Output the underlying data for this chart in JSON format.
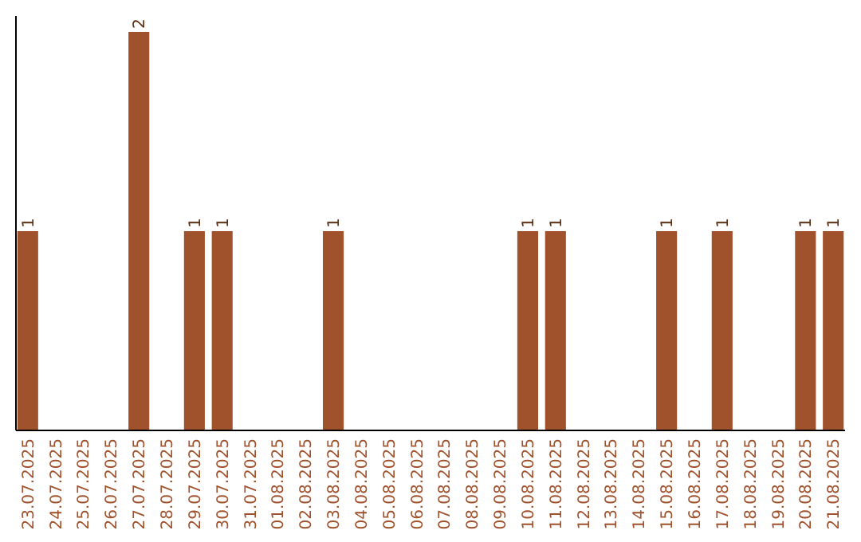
{
  "chart_data": {
    "type": "bar",
    "categories": [
      "23.07.2025",
      "24.07.2025",
      "25.07.2025",
      "26.07.2025",
      "27.07.2025",
      "28.07.2025",
      "29.07.2025",
      "30.07.2025",
      "31.07.2025",
      "01.08.2025",
      "02.08.2025",
      "03.08.2025",
      "04.08.2025",
      "05.08.2025",
      "06.08.2025",
      "07.08.2025",
      "08.08.2025",
      "09.08.2025",
      "10.08.2025",
      "11.08.2025",
      "12.08.2025",
      "13.08.2025",
      "14.08.2025",
      "15.08.2025",
      "16.08.2025",
      "17.08.2025",
      "18.08.2025",
      "19.08.2025",
      "20.08.2025",
      "21.08.2025"
    ],
    "values": [
      1,
      0,
      0,
      0,
      2,
      0,
      1,
      1,
      0,
      0,
      0,
      1,
      0,
      0,
      0,
      0,
      0,
      0,
      1,
      1,
      0,
      0,
      0,
      1,
      0,
      1,
      0,
      0,
      1,
      1
    ],
    "value_labels": [
      "1",
      null,
      null,
      null,
      "2",
      null,
      "1",
      "1",
      null,
      null,
      null,
      "1",
      null,
      null,
      null,
      null,
      null,
      null,
      "1",
      "1",
      null,
      null,
      null,
      "1",
      null,
      "1",
      null,
      null,
      "1",
      "1"
    ],
    "color": "#a0522d",
    "ylim": [
      0,
      2.08
    ],
    "tick_labels": "x"
  }
}
